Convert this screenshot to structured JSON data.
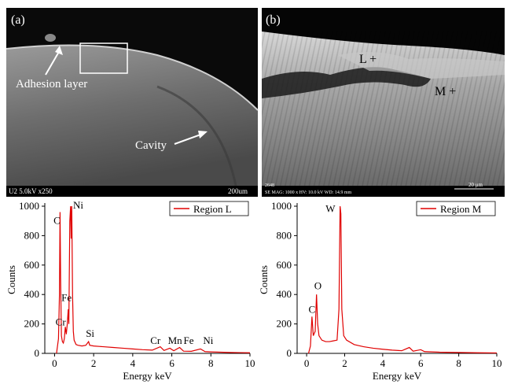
{
  "images": [
    {
      "label": "(a)",
      "annotations": [
        "Adhesion layer",
        "Cavity"
      ],
      "info": [
        "U2 5.0kV x250",
        "200um"
      ]
    },
    {
      "label": "(b)",
      "annotations": [
        "L +",
        "M +"
      ],
      "info": [
        "2648",
        "SE MAG: 1000 x HV: 10.0 kV WD: 14.9 mm",
        "20 μm"
      ]
    }
  ],
  "chart_data": [
    {
      "type": "line",
      "xlabel": "Energy keV",
      "ylabel": "Counts",
      "x": [
        0.1,
        0.2,
        0.25,
        0.28,
        0.31,
        0.35,
        0.4,
        0.45,
        0.5,
        0.55,
        0.6,
        0.65,
        0.7,
        0.73,
        0.78,
        0.82,
        0.85,
        0.88,
        0.92,
        0.96,
        1.0,
        1.1,
        1.2,
        1.4,
        1.6,
        1.74,
        1.8,
        2.0,
        2.5,
        3.0,
        3.5,
        4.0,
        4.5,
        5.0,
        5.41,
        5.6,
        5.9,
        6.1,
        6.4,
        6.6,
        7.0,
        7.47,
        7.7,
        8.0,
        8.5,
        9.0,
        9.5,
        10.0
      ],
      "series": [
        {
          "name": "Region L",
          "color": "#e00000",
          "values": [
            0,
            100,
            400,
            960,
            500,
            120,
            80,
            70,
            100,
            180,
            130,
            200,
            300,
            200,
            900,
            1000,
            780,
            1000,
            400,
            150,
            90,
            60,
            55,
            50,
            55,
            80,
            55,
            50,
            45,
            40,
            35,
            30,
            25,
            22,
            45,
            20,
            35,
            18,
            40,
            15,
            14,
            30,
            12,
            10,
            8,
            6,
            5,
            4
          ]
        }
      ],
      "annotations": [
        "C",
        "Ni",
        "Fe",
        "Cr",
        "Si",
        "Cr",
        "Mn",
        "Fe",
        "Ni"
      ],
      "xlim": [
        -0.5,
        10
      ],
      "ylim": [
        0,
        1000
      ],
      "xticks": [
        0,
        2,
        4,
        6,
        8,
        10
      ],
      "yticks": [
        0,
        200,
        400,
        600,
        800,
        1000
      ],
      "legend": "upper right",
      "grid": false
    },
    {
      "type": "line",
      "xlabel": "Energy keV",
      "ylabel": "Counts",
      "x": [
        0.1,
        0.2,
        0.28,
        0.35,
        0.45,
        0.52,
        0.58,
        0.65,
        0.8,
        1.0,
        1.2,
        1.4,
        1.6,
        1.7,
        1.76,
        1.8,
        1.85,
        1.95,
        2.1,
        2.5,
        3.0,
        3.5,
        4.0,
        4.5,
        5.0,
        5.4,
        5.6,
        6.0,
        6.2,
        7.0,
        8.0,
        9.0,
        10.0
      ],
      "series": [
        {
          "name": "Region M",
          "color": "#e00000",
          "values": [
            0,
            50,
            250,
            120,
            150,
            400,
            200,
            120,
            90,
            80,
            80,
            85,
            90,
            300,
            1000,
            950,
            300,
            120,
            90,
            60,
            45,
            35,
            28,
            22,
            18,
            40,
            15,
            25,
            12,
            8,
            6,
            4,
            3
          ]
        }
      ],
      "annotations": [
        "C",
        "O",
        "W"
      ],
      "xlim": [
        -0.5,
        10
      ],
      "ylim": [
        0,
        1000
      ],
      "xticks": [
        0,
        2,
        4,
        6,
        8,
        10
      ],
      "yticks": [
        0,
        200,
        400,
        600,
        800,
        1000
      ],
      "legend": "upper right",
      "grid": false
    }
  ]
}
